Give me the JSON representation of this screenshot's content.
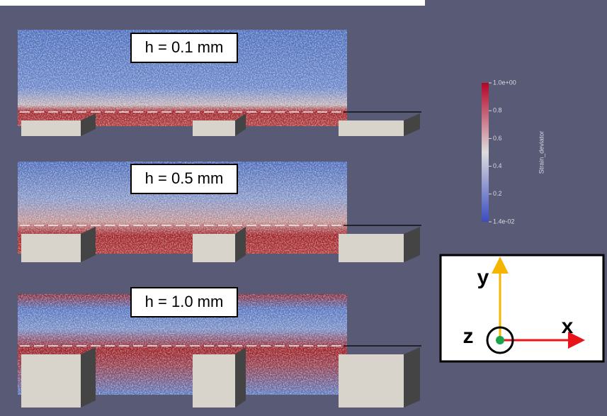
{
  "panels": [
    {
      "label": "h = 0.1 mm"
    },
    {
      "label": "h = 0.5 mm"
    },
    {
      "label": "h = 1.0 mm"
    }
  ],
  "colorbar": {
    "title": "Strain_deviator",
    "ticks": [
      "1.0e+00",
      "0.8",
      "0.6",
      "0.4",
      "0.2",
      "1.4e-02"
    ]
  },
  "axes": {
    "y": "y",
    "x": "x",
    "z": "z"
  }
}
